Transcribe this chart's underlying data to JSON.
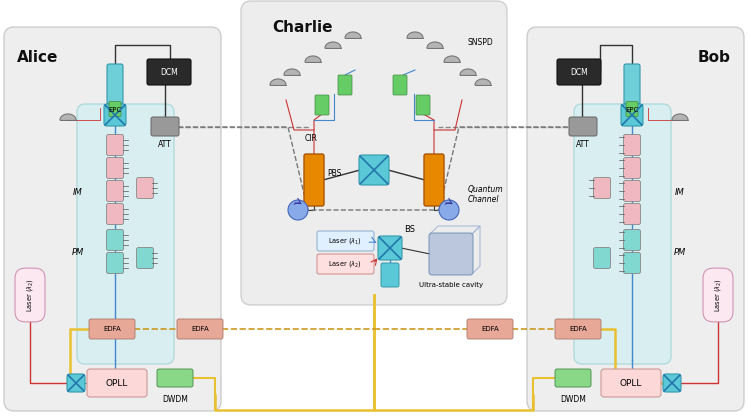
{
  "bg_color": "#ffffff",
  "alice_label": "Alice",
  "bob_label": "Bob",
  "charlie_label": "Charlie",
  "box_color": "#e8e8e8",
  "inner_color": "#c8eef5",
  "epc_color": "#6ecfd8",
  "dcm_color": "#2a2a2a",
  "att_color": "#888888",
  "im_color": "#f0b8c0",
  "pm_color": "#80d8d0",
  "opll_color": "#fcd8d8",
  "dwdm_color": "#88d888",
  "edfa_color": "#e8a898",
  "pbs_color": "#e88800",
  "cir_color": "#5588ee",
  "bs_coupler_color": "#5bc8d8",
  "snspd_color": "#999999",
  "green_fiber_color": "#66cc66",
  "yellow_fiber": "#e8c030",
  "blue_fiber": "#4488cc",
  "red_fiber": "#cc3333",
  "dark_line": "#333333",
  "dashed_line": "#888888",
  "quantum_channel": "Quantum\nChannel"
}
